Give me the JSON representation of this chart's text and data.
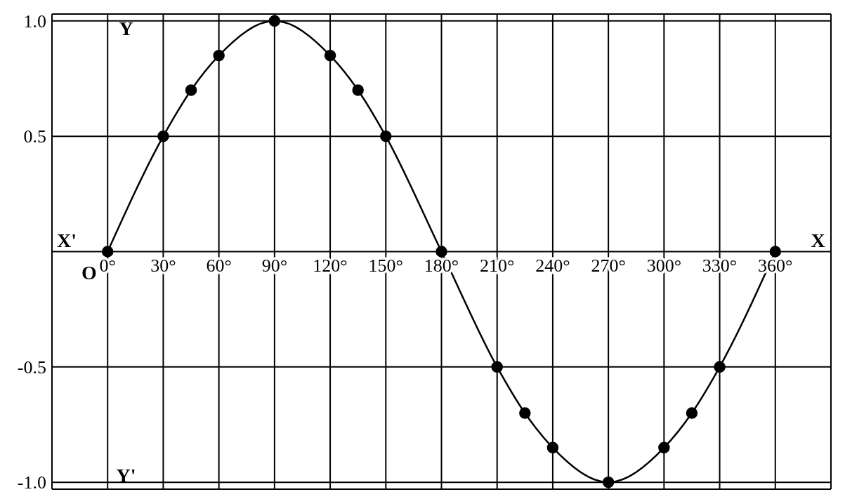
{
  "chart_data": {
    "type": "line",
    "x": [
      0,
      30,
      45,
      60,
      90,
      120,
      135,
      150,
      180,
      210,
      225,
      240,
      270,
      300,
      315,
      330,
      360
    ],
    "series": [
      {
        "color": "#000000",
        "values": [
          0,
          0.5,
          0.7,
          0.85,
          1,
          0.85,
          0.7,
          0.5,
          0,
          -0.5,
          -0.7,
          -0.85,
          -1,
          -0.85,
          -0.7,
          -0.5,
          0
        ]
      }
    ],
    "xlim": [
      -30,
      390
    ],
    "ylim": [
      -1.03,
      1.03
    ],
    "xticks": [
      {
        "value": 0,
        "label": "0°"
      },
      {
        "value": 30,
        "label": "30°"
      },
      {
        "value": 60,
        "label": "60°"
      },
      {
        "value": 90,
        "label": "90°"
      },
      {
        "value": 120,
        "label": "120°"
      },
      {
        "value": 150,
        "label": "150°"
      },
      {
        "value": 180,
        "label": "180°"
      },
      {
        "value": 210,
        "label": "210°"
      },
      {
        "value": 240,
        "label": "240°"
      },
      {
        "value": 270,
        "label": "270°"
      },
      {
        "value": 300,
        "label": "300°"
      },
      {
        "value": 330,
        "label": "330°"
      },
      {
        "value": 360,
        "label": "360°"
      }
    ],
    "yticks": [
      {
        "value": -1,
        "label": "-1.0"
      },
      {
        "value": -0.5,
        "label": "-0.5"
      },
      {
        "value": 0,
        "label": null
      },
      {
        "value": 0.5,
        "label": "0.5"
      },
      {
        "value": 1,
        "label": "1.0"
      }
    ],
    "grid": true,
    "marker": "circle",
    "line_style": "solid",
    "legend": false,
    "annotations": [
      "X'",
      "O",
      "X",
      "Y",
      "Y'"
    ]
  }
}
